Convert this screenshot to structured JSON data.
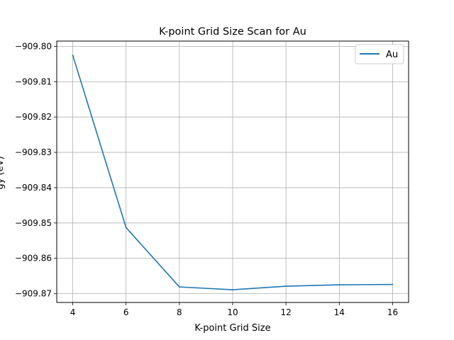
{
  "chart_data": {
    "type": "line",
    "title": "K-point Grid Size Scan for Au",
    "xlabel": "K-point Grid Size",
    "ylabel": "gy (eV)",
    "x": [
      4,
      6,
      8,
      10,
      12,
      14,
      16
    ],
    "series": [
      {
        "name": "Au",
        "color": "#1f77b4",
        "values": [
          -909.8025,
          -909.8513,
          -909.8681,
          -909.8689,
          -909.8679,
          -909.8675,
          -909.8674
        ]
      }
    ],
    "xlim": [
      3.4,
      16.6
    ],
    "ylim": [
      -909.8725,
      -909.7985
    ],
    "xticks": [
      4,
      6,
      8,
      10,
      12,
      14,
      16
    ],
    "yticks": [
      -909.8,
      -909.81,
      -909.82,
      -909.83,
      -909.84,
      -909.85,
      -909.86,
      -909.87
    ],
    "yticklabels": [
      "−909.80",
      "−909.81",
      "−909.82",
      "−909.83",
      "−909.84",
      "−909.85",
      "−909.86",
      "−909.87"
    ],
    "grid": true,
    "legend_position": "top-right"
  }
}
